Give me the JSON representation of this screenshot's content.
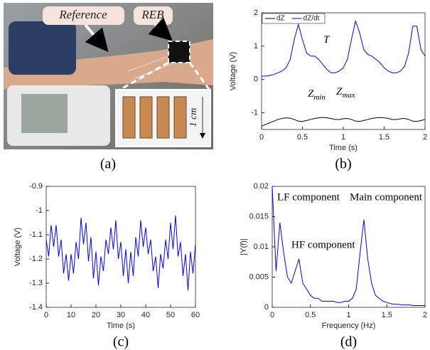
{
  "photo": {
    "labels": [
      "Reference",
      "REB",
      "1 cm"
    ],
    "caption": "(a)"
  },
  "chart_data": [
    {
      "type": "line",
      "caption": "(b)",
      "xlabel": "Time (s)",
      "ylabel": "Voltage (V)",
      "x": [
        0,
        0.05,
        0.1,
        0.15,
        0.2,
        0.25,
        0.3,
        0.35,
        0.4,
        0.45,
        0.5,
        0.55,
        0.6,
        0.65,
        0.7,
        0.75,
        0.8,
        0.85,
        0.9,
        0.95,
        1.0,
        1.05,
        1.1,
        1.15,
        1.2,
        1.25,
        1.3,
        1.35,
        1.4,
        1.45,
        1.5,
        1.55,
        1.6,
        1.65,
        1.7,
        1.75,
        1.8,
        1.85,
        1.9,
        1.95,
        2.0
      ],
      "series": [
        {
          "name": "dZ",
          "color": "#000000",
          "values": [
            -1.4,
            -1.35,
            -1.3,
            -1.25,
            -1.2,
            -1.17,
            -1.15,
            -1.16,
            -1.2,
            -1.25,
            -1.26,
            -1.23,
            -1.2,
            -1.17,
            -1.15,
            -1.14,
            -1.15,
            -1.17,
            -1.2,
            -1.2,
            -1.18,
            -1.17,
            -1.2,
            -1.25,
            -1.26,
            -1.23,
            -1.2,
            -1.17,
            -1.15,
            -1.14,
            -1.15,
            -1.17,
            -1.2,
            -1.2,
            -1.18,
            -1.17,
            -1.2,
            -1.25,
            -1.26,
            -1.23,
            -1.2
          ]
        },
        {
          "name": "dZ/dt",
          "color": "#0000ff",
          "values": [
            0.1,
            0.1,
            0.12,
            0.15,
            0.2,
            0.25,
            0.35,
            0.6,
            1.2,
            1.65,
            1.2,
            0.8,
            0.7,
            0.7,
            0.6,
            0.45,
            0.3,
            0.2,
            0.2,
            0.25,
            0.35,
            0.6,
            1.2,
            1.75,
            1.4,
            0.9,
            0.75,
            0.7,
            0.6,
            0.5,
            0.35,
            0.25,
            0.2,
            0.2,
            0.25,
            0.4,
            0.8,
            1.6,
            1.6,
            0.9,
            0.7
          ]
        }
      ],
      "xlim": [
        0,
        2
      ],
      "ylim": [
        -1.5,
        2
      ],
      "xticks": [
        0,
        0.5,
        1,
        1.5,
        2
      ],
      "yticks": [
        -1,
        0,
        1,
        2
      ],
      "legend": "upper left",
      "annotations": [
        {
          "text": "T"
        },
        {
          "text": "Z",
          "sub": "min"
        },
        {
          "text": "Z",
          "sub": "max"
        }
      ]
    },
    {
      "type": "line",
      "caption": "(c)",
      "xlabel": "Time (s)",
      "ylabel": "Voltage (V)",
      "x": [
        0,
        1,
        2,
        3,
        4,
        5,
        6,
        7,
        8,
        9,
        10,
        11,
        12,
        13,
        14,
        15,
        16,
        17,
        18,
        19,
        20,
        21,
        22,
        23,
        24,
        25,
        26,
        27,
        28,
        29,
        30,
        31,
        32,
        33,
        34,
        35,
        36,
        37,
        38,
        39,
        40,
        41,
        42,
        43,
        44,
        45,
        46,
        47,
        48,
        49,
        50,
        51,
        52,
        53,
        54,
        55,
        56,
        57,
        58,
        59,
        60
      ],
      "series": [
        {
          "color": "#0000ff",
          "values": [
            -1.12,
            -1.19,
            -1.06,
            -1.15,
            -1.06,
            -1.19,
            -1.12,
            -1.26,
            -1.18,
            -1.29,
            -1.18,
            -1.26,
            -1.13,
            -1.2,
            -1.03,
            -1.14,
            -1.05,
            -1.21,
            -1.11,
            -1.28,
            -1.17,
            -1.31,
            -1.19,
            -1.25,
            -1.12,
            -1.18,
            -1.07,
            -1.16,
            -1.04,
            -1.2,
            -1.13,
            -1.27,
            -1.16,
            -1.3,
            -1.17,
            -1.27,
            -1.11,
            -1.19,
            -1.04,
            -1.15,
            -1.07,
            -1.18,
            -1.12,
            -1.25,
            -1.19,
            -1.32,
            -1.18,
            -1.24,
            -1.12,
            -1.2,
            -1.05,
            -1.16,
            -1.02,
            -1.19,
            -1.13,
            -1.27,
            -1.18,
            -1.33,
            -1.17,
            -1.26,
            -1.14
          ]
        }
      ],
      "xlim": [
        0,
        60
      ],
      "ylim": [
        -1.4,
        -0.9
      ],
      "xticks": [
        0,
        10,
        20,
        30,
        40,
        50,
        60
      ],
      "yticks": [
        -1.4,
        -1.3,
        -1.2,
        -1.1,
        -1,
        -0.9
      ]
    },
    {
      "type": "line",
      "caption": "(d)",
      "xlabel": "Frequency (Hz)",
      "ylabel": "|Y(f)|",
      "x": [
        0,
        0.05,
        0.1,
        0.15,
        0.2,
        0.25,
        0.3,
        0.35,
        0.4,
        0.45,
        0.5,
        0.55,
        0.6,
        0.65,
        0.7,
        0.75,
        0.8,
        0.85,
        0.9,
        0.95,
        1.0,
        1.05,
        1.1,
        1.15,
        1.2,
        1.25,
        1.3,
        1.35,
        1.4,
        1.45,
        1.5,
        1.55,
        1.6,
        1.65,
        1.7,
        1.75,
        1.8,
        1.85,
        1.9,
        1.95,
        2.0
      ],
      "series": [
        {
          "color": "#0000ff",
          "values": [
            0.02,
            0.006,
            0.014,
            0.009,
            0.005,
            0.004,
            0.006,
            0.008,
            0.004,
            0.003,
            0.002,
            0.0015,
            0.0015,
            0.001,
            0.001,
            0.001,
            0.001,
            0.0008,
            0.0008,
            0.001,
            0.001,
            0.0015,
            0.003,
            0.009,
            0.0145,
            0.008,
            0.004,
            0.002,
            0.0015,
            0.001,
            0.0008,
            0.0006,
            0.0005,
            0.0005,
            0.0004,
            0.0004,
            0.0004,
            0.0003,
            0.0003,
            0.0003,
            0.0003
          ]
        }
      ],
      "xlim": [
        0,
        2
      ],
      "ylim": [
        0,
        0.02
      ],
      "xticks": [
        0,
        0.5,
        1,
        1.5,
        2
      ],
      "yticks": [
        0,
        0.005,
        0.01,
        0.015,
        0.02
      ],
      "annotations": [
        "LF component",
        "Main component",
        "HF component"
      ]
    }
  ]
}
